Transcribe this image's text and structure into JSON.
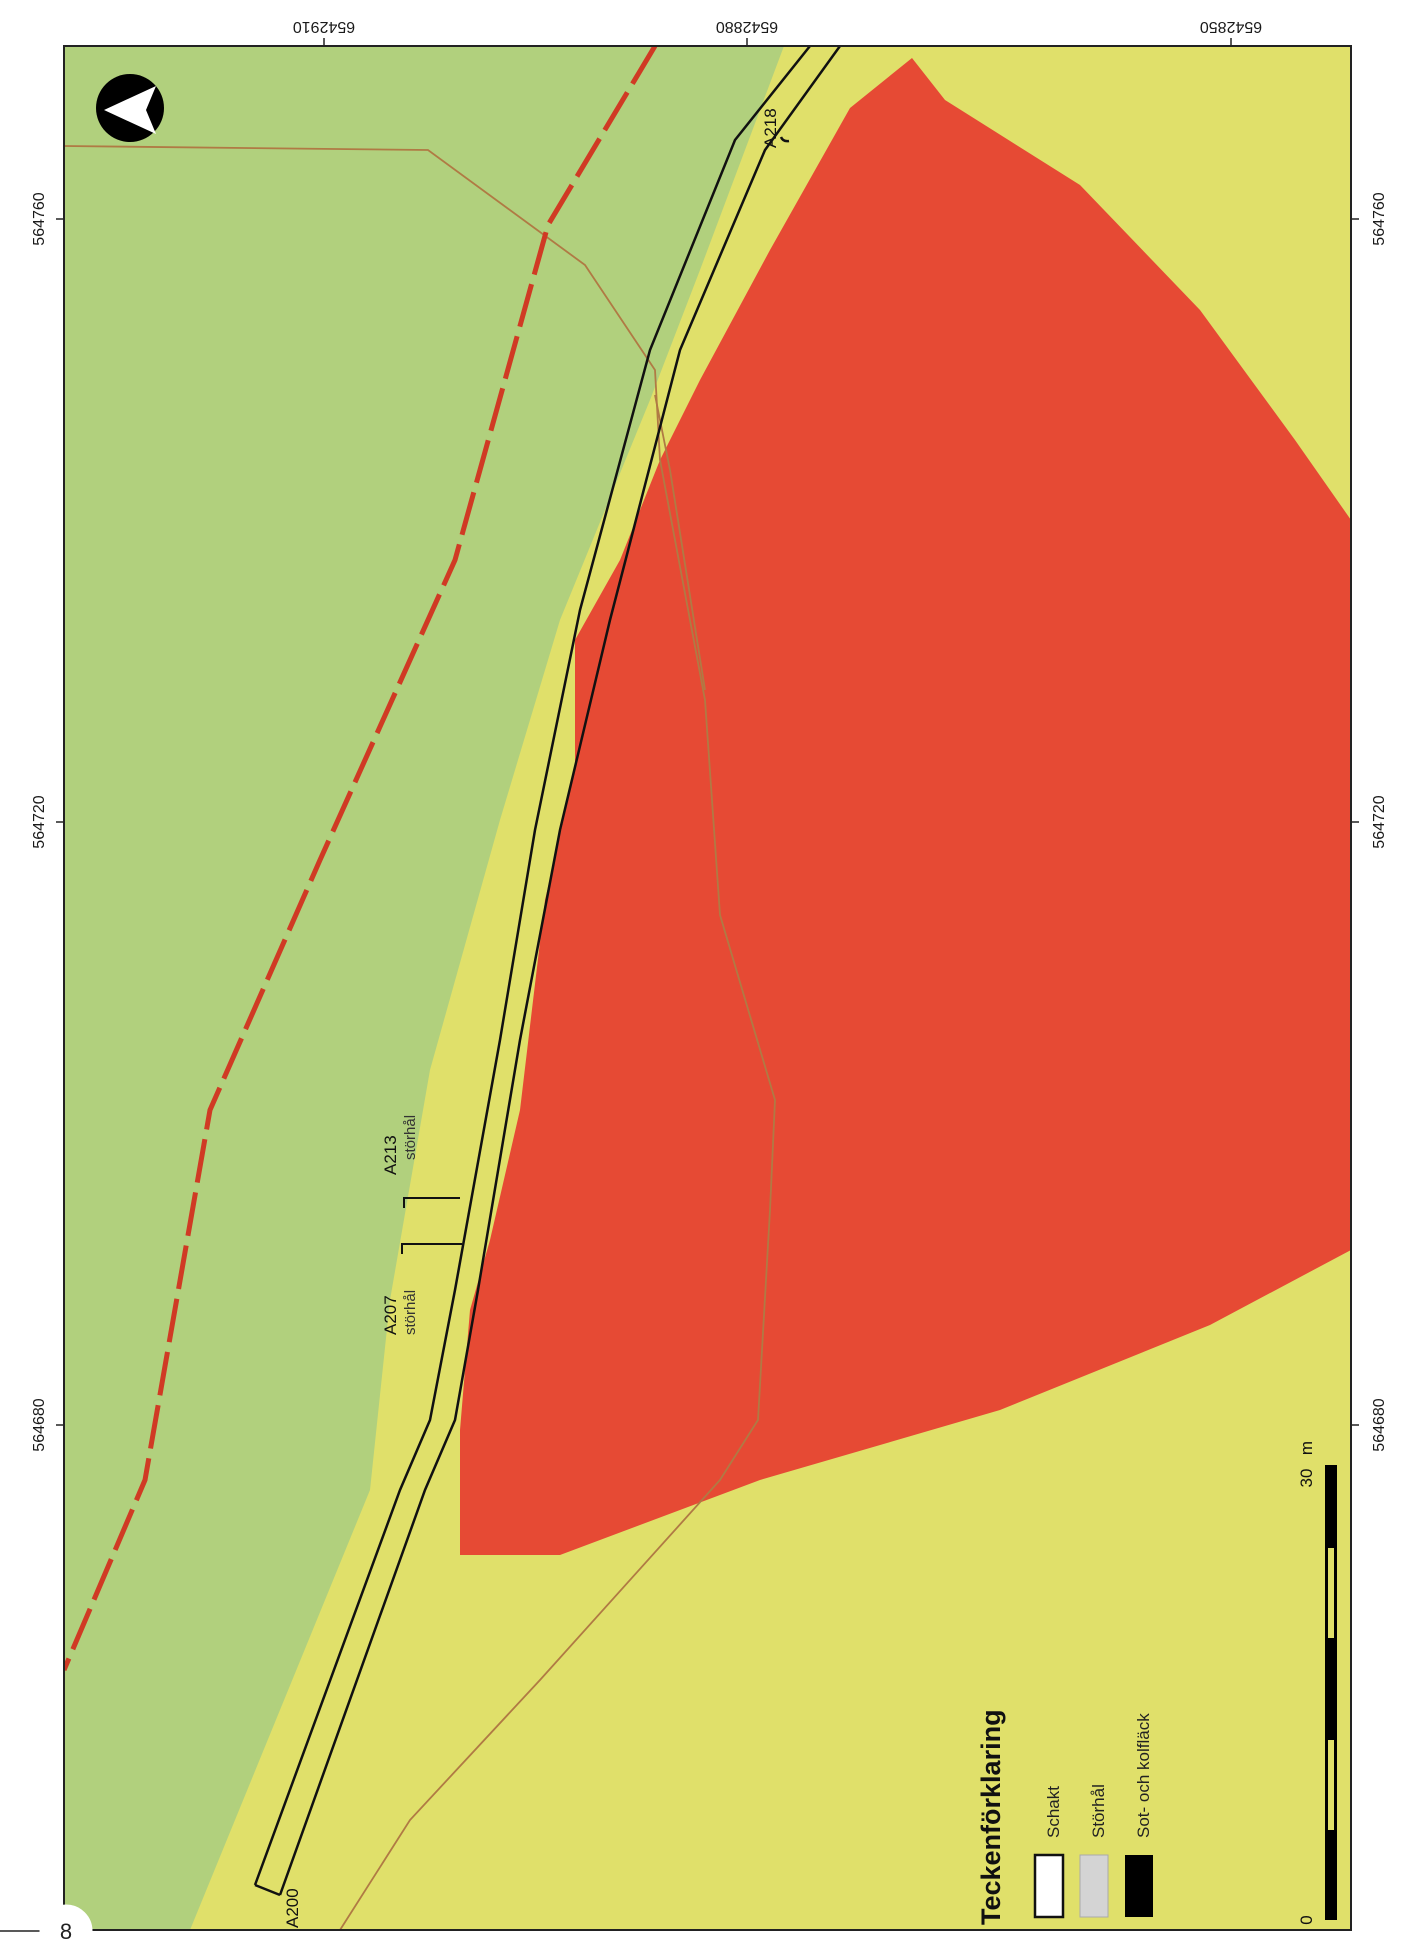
{
  "page": {
    "number": "8"
  },
  "colors": {
    "green_area": "#b1d07d",
    "yellow_area": "#e0e06a",
    "red_area": "#e64a34",
    "dashed_line": "#d03a24",
    "thin_line": "#b07a44",
    "trench_outline": "#111111"
  },
  "grid": {
    "top_labels": [
      "6542910",
      "6542880",
      "6542850"
    ],
    "left_labels": [
      "564760",
      "564720",
      "564680"
    ],
    "right_labels": [
      "564760",
      "564720",
      "564680"
    ]
  },
  "features": {
    "a200": {
      "label": "A200"
    },
    "a207": {
      "label": "A207",
      "sub": "störhål"
    },
    "a213": {
      "label": "A213",
      "sub": "störhål"
    },
    "a218": {
      "label": "A218"
    }
  },
  "north_arrow": {
    "icon": "north-arrow-icon"
  },
  "legend": {
    "title": "Teckenförklaring",
    "items": [
      {
        "label": "Schakt",
        "swatch": "#ffffff"
      },
      {
        "label": "Störhål",
        "swatch": "#d4d4d4"
      },
      {
        "label": "Sot- och kolfläck",
        "swatch": "#000000"
      }
    ]
  },
  "scale_bar": {
    "start": "0",
    "end": "30",
    "unit": "m"
  }
}
